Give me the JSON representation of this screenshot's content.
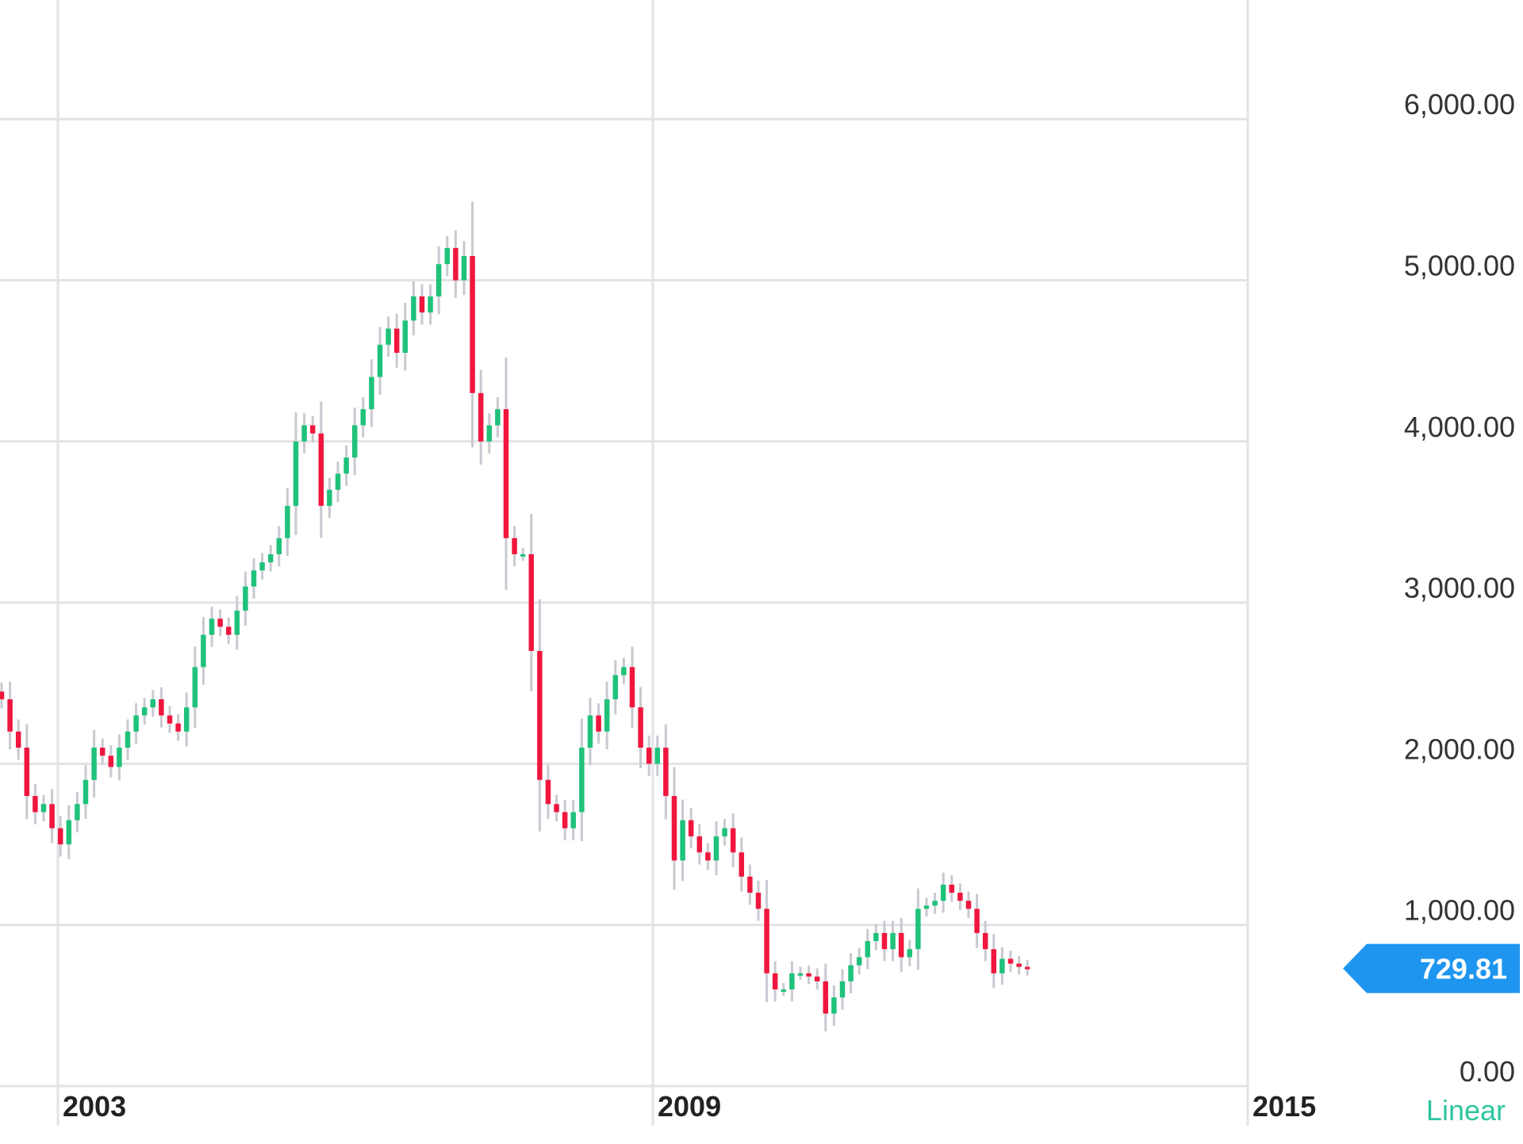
{
  "colors": {
    "up": "#1fc27a",
    "down": "#f0163d",
    "wick": "#c9c9d1",
    "grid": "#e3e3e6",
    "badge": "#1e96f0",
    "linear": "#2ec4a0"
  },
  "scale_mode_label": "Linear",
  "last_price_label": "729.81",
  "chart_data": {
    "type": "candlestick",
    "title": "",
    "xlabel": "",
    "ylabel": "",
    "ylim": [
      0,
      6700
    ],
    "x_ticks": [
      "2003",
      "2009",
      "2015"
    ],
    "y_ticks": [
      "0.00",
      "1,000.00",
      "2,000.00",
      "3,000.00",
      "4,000.00",
      "5,000.00",
      "6,000.00"
    ],
    "last_price": 729.81,
    "grid": true,
    "series": [
      {
        "values": [
          2400,
          2200,
          2100,
          1800,
          1700,
          1750,
          1600,
          1500,
          1650,
          1750,
          1900,
          2100,
          2050,
          1980,
          2100,
          2200,
          2300,
          2350,
          2400,
          2300,
          2250,
          2200,
          2350,
          2600,
          2800,
          2900,
          2850,
          2800,
          2950,
          3100,
          3200,
          3250,
          3300,
          3400,
          3600,
          4000,
          4100,
          4050,
          3600,
          3700,
          3800,
          3900,
          4100,
          4200,
          4400,
          4600,
          4700,
          4550,
          4750,
          4900,
          4800,
          4900,
          5100,
          5200,
          5000,
          5150,
          4300,
          4000,
          4100,
          4200,
          3400,
          3300,
          3300,
          2700,
          1900,
          1750,
          1700,
          1600,
          1700,
          2100,
          2300,
          2200,
          2400,
          2550,
          2600,
          2350,
          2100,
          2000,
          2100,
          1800,
          1400,
          1650,
          1550,
          1450,
          1400,
          1550,
          1600,
          1450,
          1300,
          1200,
          1100,
          700,
          600,
          600,
          700,
          700,
          680,
          650,
          450,
          550,
          650,
          750,
          800,
          900,
          950,
          850,
          950,
          800,
          850,
          1100,
          1120,
          1150,
          1250,
          1200,
          1150,
          1100,
          950,
          850,
          700,
          790,
          760,
          740,
          730
        ]
      }
    ]
  }
}
